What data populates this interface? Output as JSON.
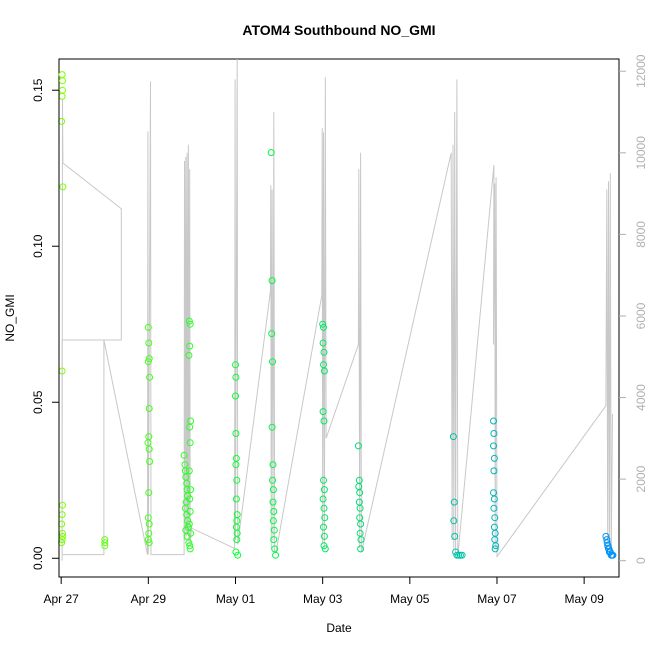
{
  "chart_data": {
    "type": "scatter",
    "title": "ATOM4 Southbound NO_GMI",
    "xlabel": "Date",
    "ylabel": "NO_GMI",
    "x_ticks": [
      "Apr 27",
      "Apr 29",
      "May 01",
      "May 03",
      "May 05",
      "May 07",
      "May 09"
    ],
    "x_tick_days": [
      27,
      29,
      31,
      33,
      35,
      37,
      39
    ],
    "xlim_days": [
      26.95,
      39.8
    ],
    "ylim": [
      -0.006,
      0.16
    ],
    "y_ticks": [
      0.0,
      0.05,
      0.1,
      0.15
    ],
    "y_tick_labels": [
      "0.00",
      "0.05",
      "0.10",
      "0.15"
    ],
    "y2_ticks": [
      0,
      2000,
      4000,
      6000,
      8000,
      10000,
      12000
    ],
    "y2_tick_labels": [
      "0",
      "2000",
      "4000",
      "6000",
      "8000",
      "10000",
      "12000"
    ],
    "y2lim": [
      -400,
      12300
    ],
    "grid": false,
    "series": [
      {
        "marker": "open-circle",
        "colored_by": "time",
        "color_start": "#7fff00",
        "color_mid": "#00ff3a",
        "color_end": "#0090ff",
        "points": [
          {
            "x": 27.02,
            "y": 0.155
          },
          {
            "x": 27.03,
            "y": 0.15
          },
          {
            "x": 27.02,
            "y": 0.148
          },
          {
            "x": 27.03,
            "y": 0.153
          },
          {
            "x": 27.01,
            "y": 0.14
          },
          {
            "x": 27.04,
            "y": 0.119
          },
          {
            "x": 27.02,
            "y": 0.06
          },
          {
            "x": 27.03,
            "y": 0.017
          },
          {
            "x": 27.02,
            "y": 0.014
          },
          {
            "x": 27.01,
            "y": 0.011
          },
          {
            "x": 27.03,
            "y": 0.008
          },
          {
            "x": 27.02,
            "y": 0.006
          },
          {
            "x": 27.01,
            "y": 0.005
          },
          {
            "x": 27.03,
            "y": 0.007
          },
          {
            "x": 28.0,
            "y": 0.006
          },
          {
            "x": 28.0,
            "y": 0.005
          },
          {
            "x": 28.0,
            "y": 0.004
          },
          {
            "x": 29.0,
            "y": 0.074
          },
          {
            "x": 29.01,
            "y": 0.069
          },
          {
            "x": 29.02,
            "y": 0.064
          },
          {
            "x": 29.0,
            "y": 0.063
          },
          {
            "x": 29.03,
            "y": 0.058
          },
          {
            "x": 29.02,
            "y": 0.048
          },
          {
            "x": 29.01,
            "y": 0.039
          },
          {
            "x": 28.99,
            "y": 0.037
          },
          {
            "x": 29.02,
            "y": 0.035
          },
          {
            "x": 29.03,
            "y": 0.031
          },
          {
            "x": 29.01,
            "y": 0.021
          },
          {
            "x": 29.0,
            "y": 0.013
          },
          {
            "x": 29.02,
            "y": 0.011
          },
          {
            "x": 29.01,
            "y": 0.008
          },
          {
            "x": 29.0,
            "y": 0.006
          },
          {
            "x": 29.02,
            "y": 0.005
          },
          {
            "x": 29.82,
            "y": 0.033
          },
          {
            "x": 29.84,
            "y": 0.03
          },
          {
            "x": 29.85,
            "y": 0.028
          },
          {
            "x": 29.86,
            "y": 0.026
          },
          {
            "x": 29.88,
            "y": 0.024
          },
          {
            "x": 29.89,
            "y": 0.022
          },
          {
            "x": 29.9,
            "y": 0.02
          },
          {
            "x": 29.87,
            "y": 0.018
          },
          {
            "x": 29.85,
            "y": 0.016
          },
          {
            "x": 29.88,
            "y": 0.014
          },
          {
            "x": 29.9,
            "y": 0.012
          },
          {
            "x": 29.92,
            "y": 0.01
          },
          {
            "x": 29.86,
            "y": 0.009
          },
          {
            "x": 29.89,
            "y": 0.007
          },
          {
            "x": 29.93,
            "y": 0.005
          },
          {
            "x": 29.95,
            "y": 0.004
          },
          {
            "x": 29.94,
            "y": 0.076
          },
          {
            "x": 29.96,
            "y": 0.075
          },
          {
            "x": 29.95,
            "y": 0.068
          },
          {
            "x": 29.93,
            "y": 0.065
          },
          {
            "x": 29.97,
            "y": 0.044
          },
          {
            "x": 29.95,
            "y": 0.042
          },
          {
            "x": 29.96,
            "y": 0.037
          },
          {
            "x": 29.94,
            "y": 0.028
          },
          {
            "x": 29.97,
            "y": 0.022
          },
          {
            "x": 29.95,
            "y": 0.019
          },
          {
            "x": 29.96,
            "y": 0.015
          },
          {
            "x": 29.94,
            "y": 0.011
          },
          {
            "x": 29.97,
            "y": 0.008
          },
          {
            "x": 29.96,
            "y": 0.003
          },
          {
            "x": 31.0,
            "y": 0.062
          },
          {
            "x": 31.01,
            "y": 0.058
          },
          {
            "x": 31.0,
            "y": 0.052
          },
          {
            "x": 31.01,
            "y": 0.04
          },
          {
            "x": 31.02,
            "y": 0.032
          },
          {
            "x": 31.01,
            "y": 0.03
          },
          {
            "x": 31.03,
            "y": 0.025
          },
          {
            "x": 31.02,
            "y": 0.019
          },
          {
            "x": 31.04,
            "y": 0.014
          },
          {
            "x": 31.03,
            "y": 0.012
          },
          {
            "x": 31.02,
            "y": 0.01
          },
          {
            "x": 31.04,
            "y": 0.008
          },
          {
            "x": 31.03,
            "y": 0.006
          },
          {
            "x": 31.01,
            "y": 0.002
          },
          {
            "x": 31.05,
            "y": 0.001
          },
          {
            "x": 31.82,
            "y": 0.13
          },
          {
            "x": 31.84,
            "y": 0.089
          },
          {
            "x": 31.83,
            "y": 0.072
          },
          {
            "x": 31.85,
            "y": 0.063
          },
          {
            "x": 31.84,
            "y": 0.042
          },
          {
            "x": 31.86,
            "y": 0.03
          },
          {
            "x": 31.85,
            "y": 0.025
          },
          {
            "x": 31.87,
            "y": 0.022
          },
          {
            "x": 31.86,
            "y": 0.018
          },
          {
            "x": 31.88,
            "y": 0.015
          },
          {
            "x": 31.87,
            "y": 0.012
          },
          {
            "x": 31.89,
            "y": 0.009
          },
          {
            "x": 31.88,
            "y": 0.006
          },
          {
            "x": 31.9,
            "y": 0.003
          },
          {
            "x": 31.92,
            "y": 0.001
          },
          {
            "x": 33.0,
            "y": 0.075
          },
          {
            "x": 33.02,
            "y": 0.074
          },
          {
            "x": 33.01,
            "y": 0.069
          },
          {
            "x": 33.03,
            "y": 0.066
          },
          {
            "x": 33.02,
            "y": 0.062
          },
          {
            "x": 33.04,
            "y": 0.06
          },
          {
            "x": 33.01,
            "y": 0.047
          },
          {
            "x": 33.03,
            "y": 0.044
          },
          {
            "x": 33.02,
            "y": 0.025
          },
          {
            "x": 33.04,
            "y": 0.022
          },
          {
            "x": 33.01,
            "y": 0.019
          },
          {
            "x": 33.03,
            "y": 0.016
          },
          {
            "x": 33.05,
            "y": 0.013
          },
          {
            "x": 33.02,
            "y": 0.01
          },
          {
            "x": 33.04,
            "y": 0.007
          },
          {
            "x": 33.03,
            "y": 0.004
          },
          {
            "x": 33.06,
            "y": 0.003
          },
          {
            "x": 33.82,
            "y": 0.036
          },
          {
            "x": 33.84,
            "y": 0.025
          },
          {
            "x": 33.83,
            "y": 0.023
          },
          {
            "x": 33.85,
            "y": 0.021
          },
          {
            "x": 33.84,
            "y": 0.018
          },
          {
            "x": 33.86,
            "y": 0.016
          },
          {
            "x": 33.85,
            "y": 0.013
          },
          {
            "x": 33.87,
            "y": 0.011
          },
          {
            "x": 33.86,
            "y": 0.008
          },
          {
            "x": 33.88,
            "y": 0.006
          },
          {
            "x": 33.87,
            "y": 0.003
          },
          {
            "x": 36.0,
            "y": 0.039
          },
          {
            "x": 36.02,
            "y": 0.018
          },
          {
            "x": 36.01,
            "y": 0.012
          },
          {
            "x": 36.03,
            "y": 0.007
          },
          {
            "x": 36.05,
            "y": 0.002
          },
          {
            "x": 36.08,
            "y": 0.001
          },
          {
            "x": 36.12,
            "y": 0.001
          },
          {
            "x": 36.16,
            "y": 0.001
          },
          {
            "x": 36.2,
            "y": 0.001
          },
          {
            "x": 36.92,
            "y": 0.044
          },
          {
            "x": 36.93,
            "y": 0.04
          },
          {
            "x": 36.92,
            "y": 0.036
          },
          {
            "x": 36.94,
            "y": 0.032
          },
          {
            "x": 36.93,
            "y": 0.028
          },
          {
            "x": 36.92,
            "y": 0.021
          },
          {
            "x": 36.94,
            "y": 0.019
          },
          {
            "x": 36.93,
            "y": 0.016
          },
          {
            "x": 36.95,
            "y": 0.013
          },
          {
            "x": 36.94,
            "y": 0.01
          },
          {
            "x": 36.96,
            "y": 0.008
          },
          {
            "x": 36.95,
            "y": 0.006
          },
          {
            "x": 36.97,
            "y": 0.004
          },
          {
            "x": 36.96,
            "y": 0.003
          },
          {
            "x": 39.5,
            "y": 0.007
          },
          {
            "x": 39.52,
            "y": 0.006
          },
          {
            "x": 39.53,
            "y": 0.005
          },
          {
            "x": 39.54,
            "y": 0.004
          },
          {
            "x": 39.55,
            "y": 0.004
          },
          {
            "x": 39.56,
            "y": 0.003
          },
          {
            "x": 39.57,
            "y": 0.003
          },
          {
            "x": 39.58,
            "y": 0.002
          },
          {
            "x": 39.6,
            "y": 0.002
          },
          {
            "x": 39.62,
            "y": 0.001
          },
          {
            "x": 39.64,
            "y": 0.001
          },
          {
            "x": 39.66,
            "y": 0.001
          }
        ]
      },
      {
        "axis": "right",
        "style": "line",
        "color": "#c8c8c8",
        "points": [
          {
            "x": 27.02,
            "y": 0
          },
          {
            "x": 27.03,
            "y": 11300
          },
          {
            "x": 27.04,
            "y": 9750
          },
          {
            "x": 28.38,
            "y": 8630
          },
          {
            "x": 28.38,
            "y": 5410
          },
          {
            "x": 27.02,
            "y": 5410
          },
          {
            "x": 27.02,
            "y": 150
          },
          {
            "x": 27.98,
            "y": 150
          },
          {
            "x": 27.98,
            "y": 5410
          },
          {
            "x": 28.98,
            "y": 150
          },
          {
            "x": 28.99,
            "y": 10530
          },
          {
            "x": 29.0,
            "y": 150
          },
          {
            "x": 29.05,
            "y": 11750
          },
          {
            "x": 29.06,
            "y": 150
          },
          {
            "x": 29.82,
            "y": 150
          },
          {
            "x": 29.83,
            "y": 9800
          },
          {
            "x": 29.84,
            "y": 500
          },
          {
            "x": 29.86,
            "y": 9900
          },
          {
            "x": 29.87,
            "y": 600
          },
          {
            "x": 29.89,
            "y": 10000
          },
          {
            "x": 29.9,
            "y": 700
          },
          {
            "x": 29.92,
            "y": 10200
          },
          {
            "x": 29.93,
            "y": 400
          },
          {
            "x": 29.95,
            "y": 9600
          },
          {
            "x": 29.96,
            "y": 400
          },
          {
            "x": 29.99,
            "y": 800
          },
          {
            "x": 30.98,
            "y": 300
          },
          {
            "x": 30.99,
            "y": 11800
          },
          {
            "x": 31.0,
            "y": 500
          },
          {
            "x": 31.04,
            "y": 12300
          },
          {
            "x": 31.05,
            "y": 400
          },
          {
            "x": 31.8,
            "y": 6600
          },
          {
            "x": 31.81,
            "y": 9200
          },
          {
            "x": 31.82,
            "y": 300
          },
          {
            "x": 31.84,
            "y": 9100
          },
          {
            "x": 31.86,
            "y": 500
          },
          {
            "x": 31.88,
            "y": 11000
          },
          {
            "x": 31.9,
            "y": 200
          },
          {
            "x": 31.93,
            "y": 200
          },
          {
            "x": 32.98,
            "y": 6500
          },
          {
            "x": 32.99,
            "y": 10600
          },
          {
            "x": 33.0,
            "y": 400
          },
          {
            "x": 33.02,
            "y": 10500
          },
          {
            "x": 33.04,
            "y": 300
          },
          {
            "x": 33.06,
            "y": 11850
          },
          {
            "x": 33.08,
            "y": 3000
          },
          {
            "x": 33.82,
            "y": 5300
          },
          {
            "x": 33.83,
            "y": 9600
          },
          {
            "x": 33.85,
            "y": 300
          },
          {
            "x": 33.87,
            "y": 10000
          },
          {
            "x": 33.89,
            "y": 200
          },
          {
            "x": 35.95,
            "y": 10000
          },
          {
            "x": 35.97,
            "y": 500
          },
          {
            "x": 35.99,
            "y": 10200
          },
          {
            "x": 36.01,
            "y": 300
          },
          {
            "x": 36.03,
            "y": 11000
          },
          {
            "x": 36.05,
            "y": 200
          },
          {
            "x": 36.08,
            "y": 11800
          },
          {
            "x": 36.1,
            "y": 100
          },
          {
            "x": 36.93,
            "y": 9700
          },
          {
            "x": 36.92,
            "y": 5300
          },
          {
            "x": 36.95,
            "y": 9250
          },
          {
            "x": 36.96,
            "y": 300
          },
          {
            "x": 36.98,
            "y": 9400
          },
          {
            "x": 37.0,
            "y": 100
          },
          {
            "x": 39.5,
            "y": 3800
          },
          {
            "x": 39.52,
            "y": 9100
          },
          {
            "x": 39.54,
            "y": 200
          },
          {
            "x": 39.56,
            "y": 9300
          },
          {
            "x": 39.58,
            "y": 100
          },
          {
            "x": 39.6,
            "y": 9500
          },
          {
            "x": 39.62,
            "y": 100
          },
          {
            "x": 39.65,
            "y": 3600
          }
        ]
      }
    ]
  }
}
